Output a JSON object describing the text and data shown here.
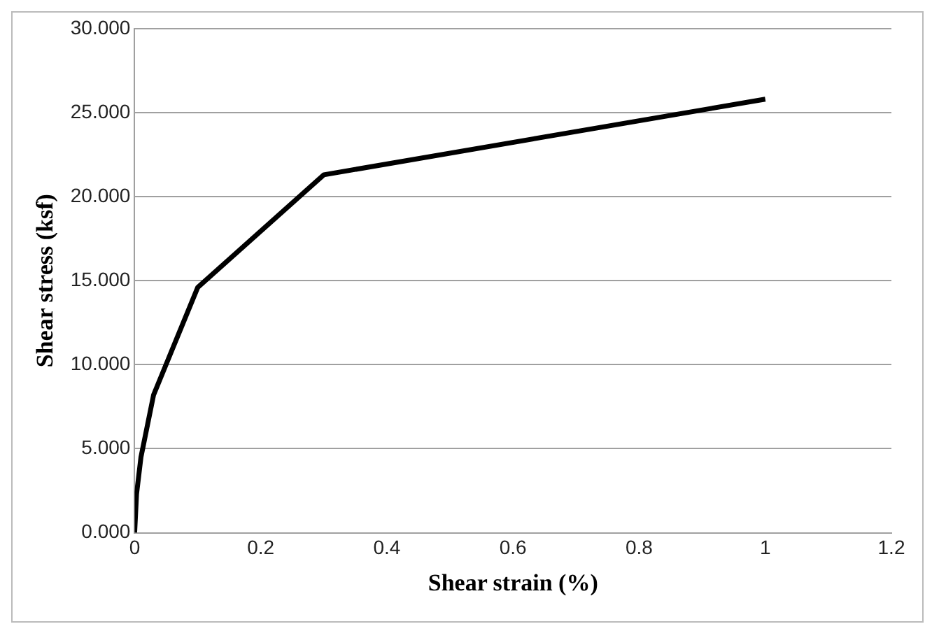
{
  "chart_data": {
    "type": "line",
    "xlabel": "Shear strain (%)",
    "ylabel": "Shear stress (ksf)",
    "x": [
      0,
      0.003,
      0.01,
      0.03,
      0.1,
      0.3,
      1
    ],
    "series": [
      {
        "color": "#000000",
        "values": [
          0,
          2.3,
          4.5,
          8.2,
          14.6,
          21.3,
          25.8
        ]
      }
    ],
    "xlim": [
      0,
      1.2
    ],
    "xticks": [
      0,
      0.2,
      0.4,
      0.6,
      0.8,
      1,
      1.2
    ],
    "ylim": [
      0,
      30
    ],
    "yticks": [
      {
        "value": 0,
        "label": "0.000"
      },
      {
        "value": 5,
        "label": "5.000"
      },
      {
        "value": 10,
        "label": "10.000"
      },
      {
        "value": 15,
        "label": "15.000"
      },
      {
        "value": 20,
        "label": "20.000"
      },
      {
        "value": 25,
        "label": "25.000"
      },
      {
        "value": 30,
        "label": "30.000"
      }
    ],
    "grid": "y",
    "legend": false,
    "marker": "none",
    "line_style": "solid"
  }
}
